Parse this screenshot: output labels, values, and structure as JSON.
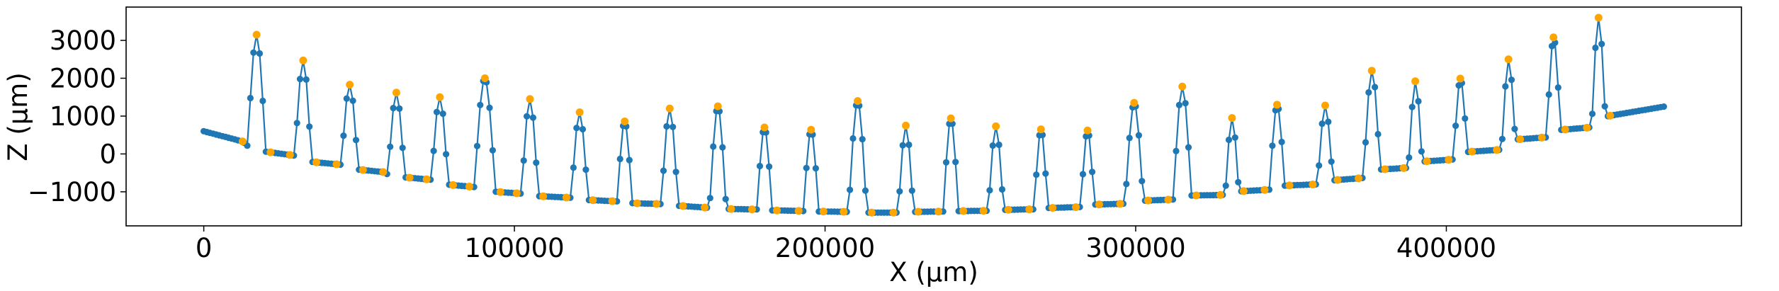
{
  "chart_data": {
    "type": "line",
    "xlabel": "X (µm)",
    "ylabel": "Z (µm)",
    "xlim": [
      -25000,
      495000
    ],
    "ylim": [
      -1900,
      3880
    ],
    "xticks": [
      {
        "value": 0,
        "label": "0"
      },
      {
        "value": 100000,
        "label": "100000"
      },
      {
        "value": 200000,
        "label": "200000"
      },
      {
        "value": 300000,
        "label": "300000"
      },
      {
        "value": 400000,
        "label": "400000"
      }
    ],
    "yticks": [
      {
        "value": -1000,
        "label": "−1000"
      },
      {
        "value": 0,
        "label": "0"
      },
      {
        "value": 1000,
        "label": "1000"
      },
      {
        "value": 2000,
        "label": "2000"
      },
      {
        "value": 3000,
        "label": "3000"
      }
    ],
    "grid": false,
    "series_color": "#1f77b4",
    "marker_color": "#ffa500",
    "baseline": [
      [
        0,
        600
      ],
      [
        12500,
        330
      ],
      [
        15500,
        110
      ],
      [
        29000,
        -40
      ],
      [
        31000,
        -180
      ],
      [
        45000,
        -290
      ],
      [
        47000,
        -390
      ],
      [
        58000,
        -480
      ],
      [
        60000,
        -580
      ],
      [
        73000,
        -680
      ],
      [
        76000,
        -790
      ],
      [
        88000,
        -880
      ],
      [
        91000,
        -980
      ],
      [
        104000,
        -1060
      ],
      [
        107000,
        -1110
      ],
      [
        119000,
        -1160
      ],
      [
        122000,
        -1210
      ],
      [
        135000,
        -1260
      ],
      [
        138000,
        -1300
      ],
      [
        150000,
        -1330
      ],
      [
        153000,
        -1370
      ],
      [
        164000,
        -1430
      ],
      [
        167000,
        -1450
      ],
      [
        180000,
        -1470
      ],
      [
        183000,
        -1490
      ],
      [
        195000,
        -1510
      ],
      [
        198000,
        -1520
      ],
      [
        209000,
        -1530
      ],
      [
        212000,
        -1550
      ],
      [
        225000,
        -1550
      ],
      [
        228000,
        -1530
      ],
      [
        239000,
        -1520
      ],
      [
        242000,
        -1510
      ],
      [
        254000,
        -1500
      ],
      [
        256000,
        -1480
      ],
      [
        268000,
        -1460
      ],
      [
        271000,
        -1430
      ],
      [
        283000,
        -1400
      ],
      [
        286000,
        -1340
      ],
      [
        298000,
        -1310
      ],
      [
        301000,
        -1240
      ],
      [
        313000,
        -1200
      ],
      [
        317000,
        -1100
      ],
      [
        330000,
        -1080
      ],
      [
        333000,
        -990
      ],
      [
        344000,
        -940
      ],
      [
        347000,
        -840
      ],
      [
        359000,
        -800
      ],
      [
        363000,
        -700
      ],
      [
        374000,
        -630
      ],
      [
        377000,
        -420
      ],
      [
        389000,
        -360
      ],
      [
        391000,
        -210
      ],
      [
        403000,
        -140
      ],
      [
        406000,
        50
      ],
      [
        419000,
        120
      ],
      [
        422000,
        380
      ],
      [
        434000,
        450
      ],
      [
        436000,
        630
      ],
      [
        449000,
        720
      ],
      [
        452000,
        1000
      ],
      [
        470000,
        1250
      ]
    ],
    "peaks": [
      {
        "x": 17000,
        "peak": 3150,
        "width": 6000
      },
      {
        "x": 32000,
        "peak": 2470,
        "width": 5500
      },
      {
        "x": 47000,
        "peak": 1830,
        "width": 5500
      },
      {
        "x": 62000,
        "peak": 1620,
        "width": 5500
      },
      {
        "x": 76000,
        "peak": 1500,
        "width": 5500
      },
      {
        "x": 90500,
        "peak": 2000,
        "width": 7000
      },
      {
        "x": 105000,
        "peak": 1450,
        "width": 5500
      },
      {
        "x": 121000,
        "peak": 1100,
        "width": 5500
      },
      {
        "x": 135500,
        "peak": 860,
        "width": 5000
      },
      {
        "x": 150000,
        "peak": 1200,
        "width": 5500
      },
      {
        "x": 165500,
        "peak": 1260,
        "width": 5500
      },
      {
        "x": 180500,
        "peak": 700,
        "width": 5000
      },
      {
        "x": 195500,
        "peak": 640,
        "width": 5000
      },
      {
        "x": 210500,
        "peak": 1400,
        "width": 6000
      },
      {
        "x": 226000,
        "peak": 750,
        "width": 5000
      },
      {
        "x": 240500,
        "peak": 940,
        "width": 5000
      },
      {
        "x": 255000,
        "peak": 730,
        "width": 5000
      },
      {
        "x": 269500,
        "peak": 650,
        "width": 4500
      },
      {
        "x": 284500,
        "peak": 620,
        "width": 4500
      },
      {
        "x": 299500,
        "peak": 1350,
        "width": 6000
      },
      {
        "x": 315000,
        "peak": 1780,
        "width": 6000
      },
      {
        "x": 331000,
        "peak": 950,
        "width": 4500
      },
      {
        "x": 345500,
        "peak": 1300,
        "width": 5000
      },
      {
        "x": 361000,
        "peak": 1280,
        "width": 5000
      },
      {
        "x": 376000,
        "peak": 2200,
        "width": 5500
      },
      {
        "x": 390000,
        "peak": 1920,
        "width": 4500
      },
      {
        "x": 404500,
        "peak": 1990,
        "width": 4500
      },
      {
        "x": 420000,
        "peak": 2500,
        "width": 4500
      },
      {
        "x": 434500,
        "peak": 3080,
        "width": 4500
      },
      {
        "x": 449000,
        "peak": 3600,
        "width": 4500
      }
    ],
    "sample_step": 1000
  }
}
